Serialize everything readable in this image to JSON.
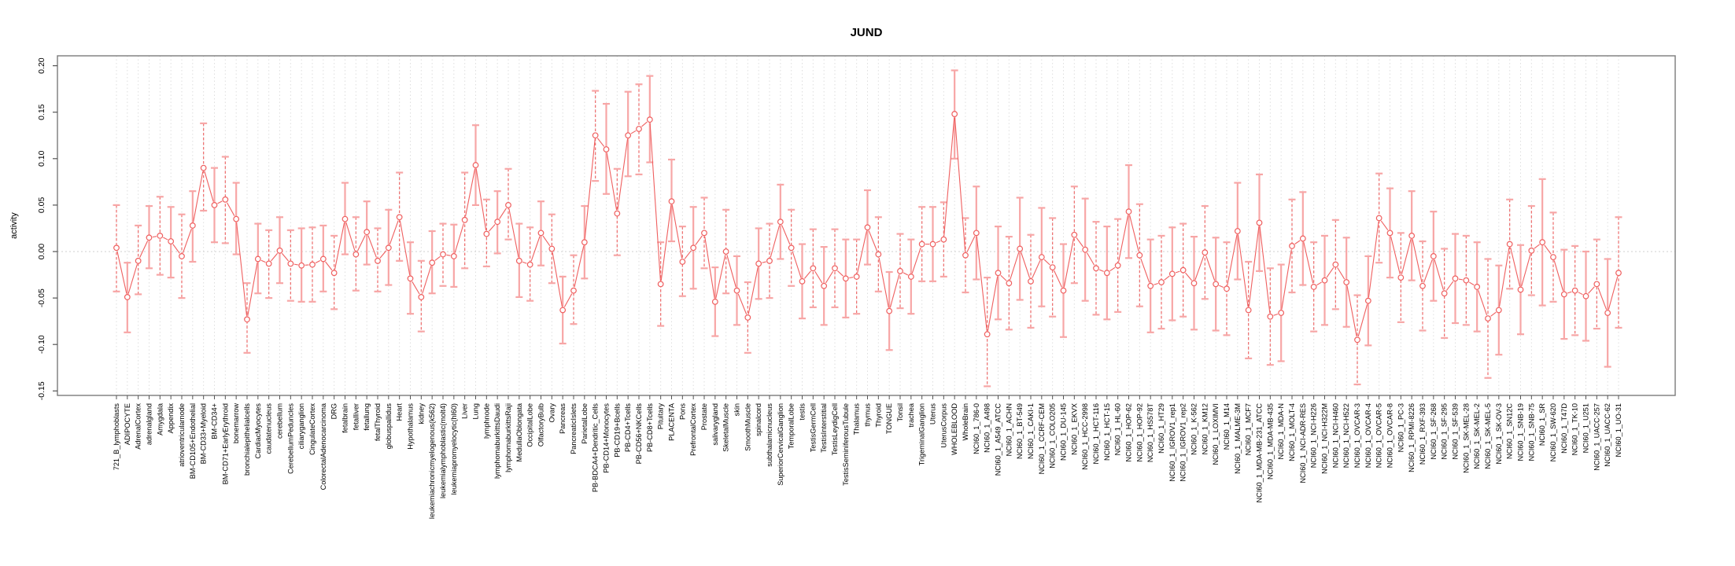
{
  "page": {
    "background": "#ffffff"
  },
  "chart_data": {
    "type": "scatter",
    "subtype": "point-estimates-with-error-bars",
    "title": "JUND",
    "xlabel": "",
    "ylabel": "activity",
    "ylim": [
      -0.155,
      0.211
    ],
    "yticks": [
      0.2,
      0.15,
      0.1,
      0.05,
      0.0,
      -0.05,
      -0.1,
      -0.15
    ],
    "ytick_labels": [
      "0.20",
      "0.15",
      "0.10",
      "0.05",
      "0.00",
      "-0.05",
      "-0.10",
      "-0.15"
    ],
    "grid": "faint dotted vertical line per category; dotted horizontal line at y=0",
    "legend_position": "none",
    "marker": "open-circle",
    "line_between_points": true,
    "x_labels_rotated_degrees": 90,
    "colors": {
      "point_stroke": "#ef5f5f",
      "line": "#ef5f5f",
      "errorbar_dark": "#ed6a6a",
      "errorbar_light": "#f7a6a6",
      "grid": "#dedede",
      "zero_line": "#cfcfcf",
      "box": "#7a7a7a",
      "tick_text": "#000000",
      "title_text": "#000000"
    },
    "points": [
      [
        "721_B_lymphoblasts",
        0.004,
        -0.043,
        0.05
      ],
      [
        "ADIPOCYTE",
        -0.049,
        -0.087,
        -0.012
      ],
      [
        "AdrenalCortex",
        -0.01,
        -0.046,
        0.028
      ],
      [
        "adrenalgland",
        0.015,
        -0.018,
        0.049
      ],
      [
        "Amygdala",
        0.017,
        -0.025,
        0.059
      ],
      [
        "Appendix",
        0.011,
        -0.028,
        0.048
      ],
      [
        "atrioventricularnode",
        -0.005,
        -0.05,
        0.04
      ],
      [
        "BM-CD105+Endothelial",
        0.028,
        -0.011,
        0.065
      ],
      [
        "BM-CD33+Myeloid",
        0.09,
        0.044,
        0.138
      ],
      [
        "BM-CD34+",
        0.05,
        0.01,
        0.09
      ],
      [
        "BM-CD71+EarlyErythroid",
        0.056,
        0.009,
        0.102
      ],
      [
        "bonemarrow",
        0.035,
        -0.003,
        0.074
      ],
      [
        "bronchialepithelialcells",
        -0.073,
        -0.109,
        -0.034
      ],
      [
        "CardiacMyocytes",
        -0.008,
        -0.045,
        0.03
      ],
      [
        "caudatenucleus",
        -0.013,
        -0.05,
        0.023
      ],
      [
        "cerebellum",
        0.001,
        -0.034,
        0.037
      ],
      [
        "CerebellumPeduncles",
        -0.013,
        -0.053,
        0.023
      ],
      [
        "ciliaryganglion",
        -0.015,
        -0.054,
        0.025
      ],
      [
        "CingulateCortex",
        -0.014,
        -0.054,
        0.026
      ],
      [
        "ColorectalAdenocarcinoma",
        -0.008,
        -0.043,
        0.028
      ],
      [
        "DRG",
        -0.023,
        -0.062,
        0.017
      ],
      [
        "fetalbrain",
        0.035,
        -0.003,
        0.074
      ],
      [
        "fetalliver",
        -0.003,
        -0.042,
        0.037
      ],
      [
        "fetallung",
        0.021,
        -0.014,
        0.054
      ],
      [
        "fetalThyroid",
        -0.01,
        -0.043,
        0.025
      ],
      [
        "globuspallidus",
        0.004,
        -0.036,
        0.045
      ],
      [
        "Heart",
        0.037,
        -0.01,
        0.085
      ],
      [
        "Hypothalamus",
        -0.029,
        -0.067,
        0.01
      ],
      [
        "kidney",
        -0.049,
        -0.086,
        -0.01
      ],
      [
        "leukemiachronicmyelogenous(k562)",
        -0.012,
        -0.045,
        0.022
      ],
      [
        "leukemialymphoblastic(molt4)",
        -0.003,
        -0.037,
        0.03
      ],
      [
        "leukemiapromyelocytic(hl60)",
        -0.005,
        -0.038,
        0.029
      ],
      [
        "Liver",
        0.034,
        -0.018,
        0.085
      ],
      [
        "Lung",
        0.093,
        0.05,
        0.136
      ],
      [
        "lymphnode",
        0.019,
        -0.016,
        0.056
      ],
      [
        "lymphomaburkittsDaudi",
        0.032,
        -0.002,
        0.065
      ],
      [
        "lymphomaburkittsRaji",
        0.05,
        0.013,
        0.089
      ],
      [
        "MedullaOblongata",
        -0.01,
        -0.049,
        0.03
      ],
      [
        "OccipitalLobe",
        -0.014,
        -0.053,
        0.026
      ],
      [
        "OlfactoryBulb",
        0.02,
        -0.015,
        0.054
      ],
      [
        "Ovary",
        0.003,
        -0.034,
        0.04
      ],
      [
        "Pancreas",
        -0.063,
        -0.099,
        -0.027
      ],
      [
        "PancreaticIslets",
        -0.042,
        -0.078,
        -0.004
      ],
      [
        "ParietalLobe",
        0.01,
        -0.029,
        0.049
      ],
      [
        "PB-BDCA4+Dendritic_Cells",
        0.125,
        0.076,
        0.173
      ],
      [
        "PB-CD14+Monocytes",
        0.11,
        0.062,
        0.159
      ],
      [
        "PB-CD19+Bcells",
        0.041,
        -0.004,
        0.089
      ],
      [
        "PB-CD4+Tcells",
        0.125,
        0.081,
        0.172
      ],
      [
        "PB-CD56+NKCells",
        0.132,
        0.083,
        0.18
      ],
      [
        "PB-CD8+Tcells",
        0.142,
        0.096,
        0.189
      ],
      [
        "Pituitary",
        -0.035,
        -0.08,
        0.01
      ],
      [
        "PLACENTA",
        0.054,
        0.011,
        0.099
      ],
      [
        "Pons",
        -0.011,
        -0.048,
        0.027
      ],
      [
        "PrefrontalCortex",
        0.004,
        -0.04,
        0.048
      ],
      [
        "Prostate",
        0.02,
        -0.018,
        0.058
      ],
      [
        "salivarygland",
        -0.054,
        -0.091,
        -0.017
      ],
      [
        "SkeletalMuscle",
        0.0,
        -0.045,
        0.045
      ],
      [
        "skin",
        -0.042,
        -0.079,
        -0.005
      ],
      [
        "SmoothMuscle",
        -0.071,
        -0.109,
        -0.033
      ],
      [
        "spinalcord",
        -0.013,
        -0.051,
        0.025
      ],
      [
        "subthalamicnucleus",
        -0.01,
        -0.05,
        0.03
      ],
      [
        "SuperiorCervicalGanglion",
        0.032,
        -0.008,
        0.072
      ],
      [
        "TemporalLobe",
        0.004,
        -0.037,
        0.045
      ],
      [
        "testis",
        -0.032,
        -0.072,
        0.008
      ],
      [
        "TestisGermCell",
        -0.018,
        -0.06,
        0.024
      ],
      [
        "TestisInterstitial",
        -0.037,
        -0.079,
        0.005
      ],
      [
        "TestisLeydigCell",
        -0.018,
        -0.06,
        0.024
      ],
      [
        "TestisSeminiferousTubule",
        -0.029,
        -0.071,
        0.013
      ],
      [
        "Thalamus",
        -0.027,
        -0.067,
        0.013
      ],
      [
        "thymus",
        0.026,
        -0.014,
        0.066
      ],
      [
        "Thyroid",
        -0.003,
        -0.043,
        0.037
      ],
      [
        "TONGUE",
        -0.064,
        -0.106,
        -0.022
      ],
      [
        "Tonsil",
        -0.021,
        -0.061,
        0.019
      ],
      [
        "trachea",
        -0.027,
        -0.067,
        0.013
      ],
      [
        "TrigeminalGanglion",
        0.008,
        -0.032,
        0.048
      ],
      [
        "Uterus",
        0.008,
        -0.032,
        0.048
      ],
      [
        "UterusCorpus",
        0.013,
        -0.027,
        0.053
      ],
      [
        "WHOLEBLOOD",
        0.148,
        0.1,
        0.195
      ],
      [
        "WholeBrain",
        -0.004,
        -0.044,
        0.036
      ],
      [
        "NCI60_1_786-0",
        0.02,
        -0.03,
        0.07
      ],
      [
        "NCI60_1_A498",
        -0.089,
        -0.145,
        -0.028
      ],
      [
        "NCI60_1_A549_ATCC",
        -0.023,
        -0.073,
        0.027
      ],
      [
        "NCI60_1_ACHN",
        -0.034,
        -0.084,
        0.016
      ],
      [
        "NCI60_1_BT-549",
        0.003,
        -0.052,
        0.058
      ],
      [
        "NCI60_1_CAKI-1",
        -0.032,
        -0.082,
        0.018
      ],
      [
        "NCI60_1_CCRF-CEM",
        -0.006,
        -0.059,
        0.047
      ],
      [
        "NCI60_1_COLO205",
        -0.017,
        -0.07,
        0.036
      ],
      [
        "NCI60_1_DU-145",
        -0.042,
        -0.092,
        0.008
      ],
      [
        "NCI60_1_EKVX",
        0.018,
        -0.034,
        0.07
      ],
      [
        "NCI60_1_HCC-2998",
        0.002,
        -0.053,
        0.057
      ],
      [
        "NCI60_1_HCT-116",
        -0.018,
        -0.068,
        0.032
      ],
      [
        "NCI60_1_HCT-15",
        -0.023,
        -0.073,
        0.027
      ],
      [
        "NCI60_1_HL-60",
        -0.015,
        -0.065,
        0.035
      ],
      [
        "NCI60_1_HOP-62",
        0.043,
        -0.007,
        0.093
      ],
      [
        "NCI60_1_HOP-92",
        -0.004,
        -0.059,
        0.051
      ],
      [
        "NCI60_1_HS578T",
        -0.037,
        -0.087,
        0.013
      ],
      [
        "NCI60_1_HT29",
        -0.033,
        -0.083,
        0.017
      ],
      [
        "NCI60_1_IGROV1_rep1",
        -0.024,
        -0.074,
        0.026
      ],
      [
        "NCI60_1_IGROV1_rep2",
        -0.02,
        -0.07,
        0.03
      ],
      [
        "NCI60_1_K-562",
        -0.034,
        -0.084,
        0.016
      ],
      [
        "NCI60_1_KM12",
        -0.001,
        -0.051,
        0.049
      ],
      [
        "NCI60_1_LOXIMVI",
        -0.035,
        -0.085,
        0.015
      ],
      [
        "NCI60_1_M14",
        -0.04,
        -0.09,
        0.01
      ],
      [
        "NCI60_1_MALME-3M",
        0.022,
        -0.03,
        0.074
      ],
      [
        "NCI60_1_MCF7",
        -0.063,
        -0.115,
        -0.011
      ],
      [
        "NCI60_1_MDA-MB-231_ATCC",
        0.031,
        -0.021,
        0.083
      ],
      [
        "NCI60_1_MDA-MB-435",
        -0.07,
        -0.122,
        -0.018
      ],
      [
        "NCI60_1_MDA-N",
        -0.066,
        -0.118,
        -0.014
      ],
      [
        "NCI60_1_MOLT-4",
        0.006,
        -0.044,
        0.056
      ],
      [
        "NCI60_1_NCI-ADR-RES",
        0.014,
        -0.036,
        0.064
      ],
      [
        "NCI60_1_NCI-H226",
        -0.038,
        -0.086,
        0.01
      ],
      [
        "NCI60_1_NCI-H322M",
        -0.031,
        -0.079,
        0.017
      ],
      [
        "NCI60_1_NCI-H460",
        -0.014,
        -0.062,
        0.034
      ],
      [
        "NCI60_1_NCI-H522",
        -0.033,
        -0.081,
        0.015
      ],
      [
        "NCI60_1_OVCAR-3",
        -0.095,
        -0.143,
        -0.047
      ],
      [
        "NCI60_1_OVCAR-4",
        -0.053,
        -0.101,
        -0.005
      ],
      [
        "NCI60_1_OVCAR-5",
        0.036,
        -0.012,
        0.084
      ],
      [
        "NCI60_1_OVCAR-8",
        0.02,
        -0.028,
        0.068
      ],
      [
        "NCI60_1_PC-3",
        -0.028,
        -0.076,
        0.02
      ],
      [
        "NCI60_1_RPMI-8226",
        0.017,
        -0.031,
        0.065
      ],
      [
        "NCI60_1_RXF-393",
        -0.037,
        -0.085,
        0.011
      ],
      [
        "NCI60_1_SF-268",
        -0.005,
        -0.053,
        0.043
      ],
      [
        "NCI60_1_SF-295",
        -0.045,
        -0.093,
        0.003
      ],
      [
        "NCI60_1_SF-539",
        -0.029,
        -0.077,
        0.019
      ],
      [
        "NCI60_1_SK-MEL-28",
        -0.031,
        -0.079,
        0.017
      ],
      [
        "NCI60_1_SK-MEL-2",
        -0.038,
        -0.086,
        0.01
      ],
      [
        "NCI60_1_SK-MEL-5",
        -0.072,
        -0.136,
        -0.008
      ],
      [
        "NCI60_1_SK-OV-3",
        -0.063,
        -0.111,
        -0.015
      ],
      [
        "NCI60_1_SN12C",
        0.008,
        -0.04,
        0.056
      ],
      [
        "NCI60_1_SNB-19",
        -0.041,
        -0.089,
        0.007
      ],
      [
        "NCI60_1_SNB-75",
        0.001,
        -0.047,
        0.049
      ],
      [
        "NCI60_1_SR",
        0.01,
        -0.058,
        0.078
      ],
      [
        "NCI60_1_SW-620",
        -0.006,
        -0.054,
        0.042
      ],
      [
        "NCI60_1_T47D",
        -0.046,
        -0.094,
        0.002
      ],
      [
        "NCI60_1_TK-10",
        -0.042,
        -0.09,
        0.006
      ],
      [
        "NCI60_1_U251",
        -0.048,
        -0.096,
        0.0
      ],
      [
        "NCI60_1_UACC-257",
        -0.035,
        -0.083,
        0.013
      ],
      [
        "NCI60_1_UACC-62",
        -0.066,
        -0.124,
        -0.008
      ],
      [
        "NCI60_1_UO-31",
        -0.023,
        -0.082,
        0.037
      ]
    ]
  }
}
